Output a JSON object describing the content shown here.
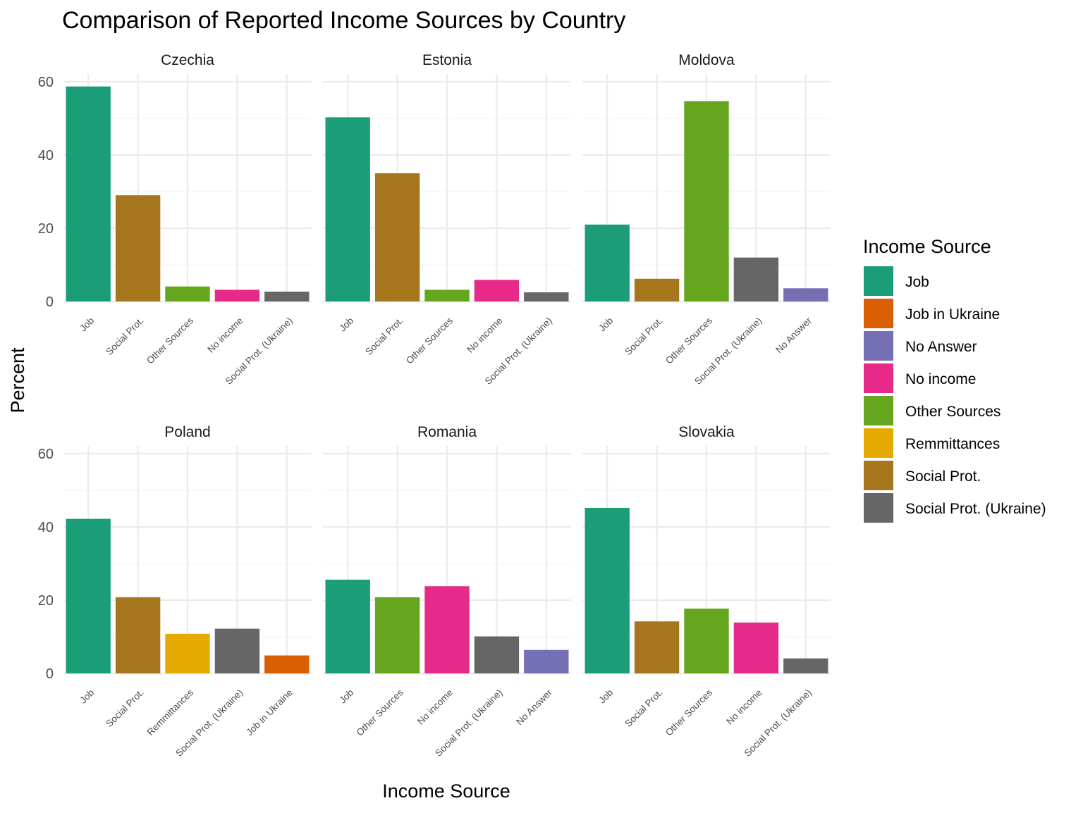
{
  "colors": {
    "Job": "#1B9E77",
    "Job in Ukraine": "#D95F02",
    "No Answer": "#7570B3",
    "No income": "#E7298A",
    "Other Sources": "#66A61E",
    "Remmittances": "#E6AB02",
    "Social Prot.": "#A6761D",
    "Social Prot. (Ukraine)": "#666666",
    "grid_major": "#EBEBEB",
    "grid_minor": "#F5F5F5"
  },
  "chart_data": {
    "type": "bar",
    "title": "Comparison of Reported Income Sources by Country",
    "xlabel": "Income Source",
    "ylabel": "Percent",
    "ylim": [
      0,
      60
    ],
    "yticks": [
      0,
      20,
      40,
      60
    ],
    "grid": true,
    "legend": {
      "title": "Income Source",
      "position": "right",
      "entries": [
        "Job",
        "Job in Ukraine",
        "No Answer",
        "No income",
        "Other Sources",
        "Remmittances",
        "Social Prot.",
        "Social Prot. (Ukraine)"
      ]
    },
    "panels": [
      {
        "country": "Czechia",
        "categories": [
          "Job",
          "Social Prot.",
          "Other Sources",
          "No income",
          "Social Prot. (Ukraine)"
        ],
        "values": [
          58.7,
          29.0,
          4.1,
          3.2,
          2.7
        ]
      },
      {
        "country": "Estonia",
        "categories": [
          "Job",
          "Social Prot.",
          "Other Sources",
          "No income",
          "Social Prot. (Ukraine)"
        ],
        "values": [
          50.3,
          35.0,
          3.2,
          5.9,
          2.5
        ]
      },
      {
        "country": "Moldova",
        "categories": [
          "Job",
          "Social Prot.",
          "Other Sources",
          "Social Prot. (Ukraine)",
          "No Answer"
        ],
        "values": [
          21.0,
          6.2,
          54.7,
          12.0,
          3.6
        ]
      },
      {
        "country": "Poland",
        "categories": [
          "Job",
          "Social Prot.",
          "Remmittances",
          "Social Prot. (Ukraine)",
          "Job in Ukraine"
        ],
        "values": [
          42.2,
          20.8,
          10.8,
          12.2,
          4.9
        ]
      },
      {
        "country": "Romania",
        "categories": [
          "Job",
          "Other Sources",
          "No income",
          "Social Prot. (Ukraine)",
          "No Answer"
        ],
        "values": [
          25.6,
          20.8,
          23.8,
          10.1,
          6.4
        ]
      },
      {
        "country": "Slovakia",
        "categories": [
          "Job",
          "Social Prot.",
          "Other Sources",
          "No income",
          "Social Prot. (Ukraine)"
        ],
        "values": [
          45.2,
          14.2,
          17.7,
          13.9,
          4.1
        ]
      }
    ]
  }
}
